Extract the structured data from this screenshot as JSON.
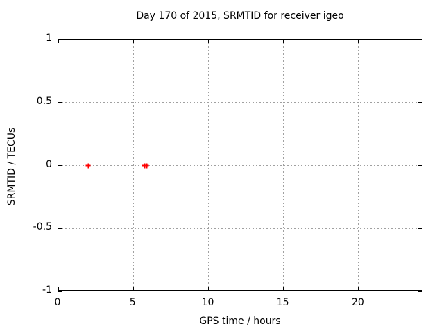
{
  "chart_data": {
    "type": "scatter",
    "title": "Day 170 of 2015, SRMTID for receiver igeo",
    "xlabel": "GPS time / hours",
    "ylabel": "SRMTID / TECUs",
    "xlim": [
      0,
      24.3
    ],
    "ylim": [
      -1,
      1
    ],
    "xticks": {
      "values": [
        0,
        5,
        10,
        15,
        20
      ],
      "labels": [
        "0",
        "5",
        "10",
        "15",
        "20"
      ]
    },
    "yticks": {
      "values": [
        -1,
        -0.5,
        0,
        0.5,
        1
      ],
      "labels": [
        "-1",
        "-0.5",
        "0",
        "0.5",
        "1"
      ]
    },
    "grid": true,
    "legend_position": "none",
    "series": [
      {
        "name": "SRMTID",
        "marker": "plus",
        "color": "#ff0000",
        "points": [
          [
            2.0,
            0.0
          ],
          [
            5.74,
            0.0
          ],
          [
            5.89,
            0.0
          ]
        ]
      }
    ]
  },
  "colors": {
    "background": "#ffffff",
    "border": "#000000",
    "grid": "#a0a0a0",
    "marker": "#ff0000",
    "text": "#000000"
  }
}
